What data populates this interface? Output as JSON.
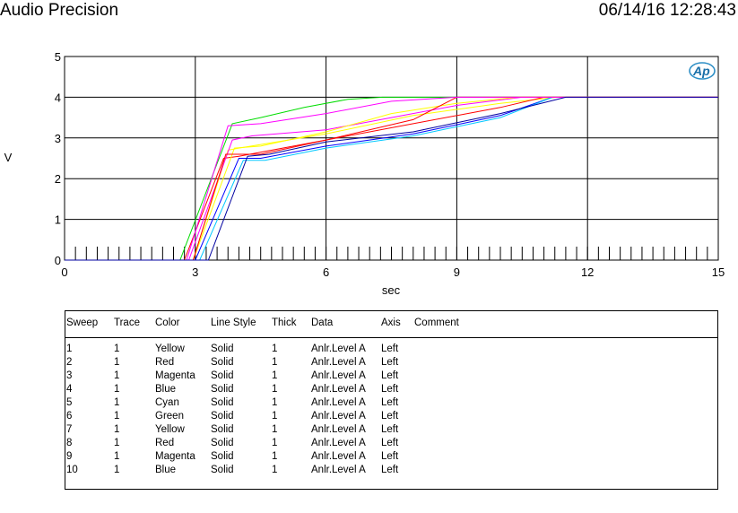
{
  "header": {
    "app_title": "Audio Precision",
    "timestamp": "06/14/16 12:28:43"
  },
  "logo": "Ap",
  "chart_data": {
    "type": "line",
    "xlabel": "sec",
    "ylabel": "V",
    "xlim": [
      0,
      15
    ],
    "ylim": [
      0,
      5
    ],
    "xticks": [
      "0",
      "3",
      "6",
      "9",
      "12",
      "15"
    ],
    "yticks": [
      "0",
      "1",
      "2",
      "3",
      "4",
      "5"
    ],
    "grid": true,
    "series": [
      {
        "name": "1",
        "color": "#ffff00",
        "x": [
          0,
          2.95,
          3.75,
          4.0,
          6.0,
          8.0,
          10.0,
          11.3,
          15
        ],
        "y": [
          0,
          0,
          2.7,
          2.75,
          3.1,
          3.55,
          3.85,
          4.0,
          4.0
        ]
      },
      {
        "name": "2",
        "color": "#ff0000",
        "x": [
          0,
          2.75,
          3.65,
          4.0,
          6.0,
          8.0,
          10.0,
          11.0,
          15
        ],
        "y": [
          0,
          0,
          2.5,
          2.55,
          2.95,
          3.35,
          3.75,
          4.0,
          4.0
        ]
      },
      {
        "name": "3",
        "color": "#ff00ff",
        "x": [
          0,
          2.85,
          3.85,
          4.3,
          6.0,
          7.5,
          9.0,
          10.5,
          15
        ],
        "y": [
          0,
          0,
          2.95,
          3.05,
          3.2,
          3.5,
          3.8,
          4.0,
          4.0
        ]
      },
      {
        "name": "4",
        "color": "#0000ff",
        "x": [
          0,
          3.0,
          4.0,
          4.5,
          6.0,
          8.0,
          10.0,
          11.2,
          15
        ],
        "y": [
          0,
          0,
          2.5,
          2.5,
          2.8,
          3.1,
          3.55,
          4.0,
          4.0
        ]
      },
      {
        "name": "5",
        "color": "#00c8ff",
        "x": [
          0,
          3.1,
          4.1,
          4.6,
          6.0,
          8.0,
          10.0,
          11.2,
          15
        ],
        "y": [
          0,
          0,
          2.45,
          2.45,
          2.75,
          3.05,
          3.5,
          4.0,
          4.0
        ]
      },
      {
        "name": "6",
        "color": "#00dd00",
        "x": [
          0,
          2.65,
          3.85,
          4.5,
          5.5,
          6.5,
          7.3,
          15
        ],
        "y": [
          0,
          0,
          3.35,
          3.5,
          3.75,
          3.95,
          4.0,
          4.0
        ]
      },
      {
        "name": "7",
        "color": "#ffff00",
        "x": [
          0,
          2.95,
          3.9,
          4.5,
          6.0,
          7.5,
          9.0,
          10.4,
          15
        ],
        "y": [
          0,
          0,
          2.75,
          2.8,
          3.15,
          3.6,
          3.85,
          4.0,
          4.0
        ]
      },
      {
        "name": "8",
        "color": "#ff0000",
        "x": [
          0,
          2.95,
          3.7,
          4.5,
          6.0,
          8.0,
          9.0,
          15
        ],
        "y": [
          0,
          0,
          2.6,
          2.6,
          2.95,
          3.45,
          4.0,
          4.0
        ]
      },
      {
        "name": "9",
        "color": "#ff00ff",
        "x": [
          0,
          2.8,
          3.75,
          4.5,
          6.0,
          7.5,
          9.0,
          15
        ],
        "y": [
          0,
          0,
          3.3,
          3.35,
          3.6,
          3.9,
          4.0,
          4.0
        ]
      },
      {
        "name": "10",
        "color": "#0000a0",
        "x": [
          0,
          3.3,
          4.2,
          4.7,
          6.0,
          8.0,
          10.0,
          11.5,
          15
        ],
        "y": [
          0,
          0,
          2.55,
          2.6,
          2.9,
          3.15,
          3.6,
          4.0,
          4.0
        ]
      }
    ]
  },
  "legend": {
    "headers": {
      "sweep": "Sweep",
      "trace": "Trace",
      "color": "Color",
      "line_style": "Line Style",
      "thick": "Thick",
      "data": "Data",
      "axis": "Axis",
      "comment": "Comment"
    },
    "rows": [
      {
        "sweep": "1",
        "trace": "1",
        "color": "Yellow",
        "line_style": "Solid",
        "thick": "1",
        "data": "Anlr.Level A",
        "axis": "Left"
      },
      {
        "sweep": "2",
        "trace": "1",
        "color": "Red",
        "line_style": "Solid",
        "thick": "1",
        "data": "Anlr.Level A",
        "axis": "Left"
      },
      {
        "sweep": "3",
        "trace": "1",
        "color": "Magenta",
        "line_style": "Solid",
        "thick": "1",
        "data": "Anlr.Level A",
        "axis": "Left"
      },
      {
        "sweep": "4",
        "trace": "1",
        "color": "Blue",
        "line_style": "Solid",
        "thick": "1",
        "data": "Anlr.Level A",
        "axis": "Left"
      },
      {
        "sweep": "5",
        "trace": "1",
        "color": "Cyan",
        "line_style": "Solid",
        "thick": "1",
        "data": "Anlr.Level A",
        "axis": "Left"
      },
      {
        "sweep": "6",
        "trace": "1",
        "color": "Green",
        "line_style": "Solid",
        "thick": "1",
        "data": "Anlr.Level A",
        "axis": "Left"
      },
      {
        "sweep": "7",
        "trace": "1",
        "color": "Yellow",
        "line_style": "Solid",
        "thick": "1",
        "data": "Anlr.Level A",
        "axis": "Left"
      },
      {
        "sweep": "8",
        "trace": "1",
        "color": "Red",
        "line_style": "Solid",
        "thick": "1",
        "data": "Anlr.Level A",
        "axis": "Left"
      },
      {
        "sweep": "9",
        "trace": "1",
        "color": "Magenta",
        "line_style": "Solid",
        "thick": "1",
        "data": "Anlr.Level A",
        "axis": "Left"
      },
      {
        "sweep": "10",
        "trace": "1",
        "color": "Blue",
        "line_style": "Solid",
        "thick": "1",
        "data": "Anlr.Level A",
        "axis": "Left"
      }
    ]
  }
}
